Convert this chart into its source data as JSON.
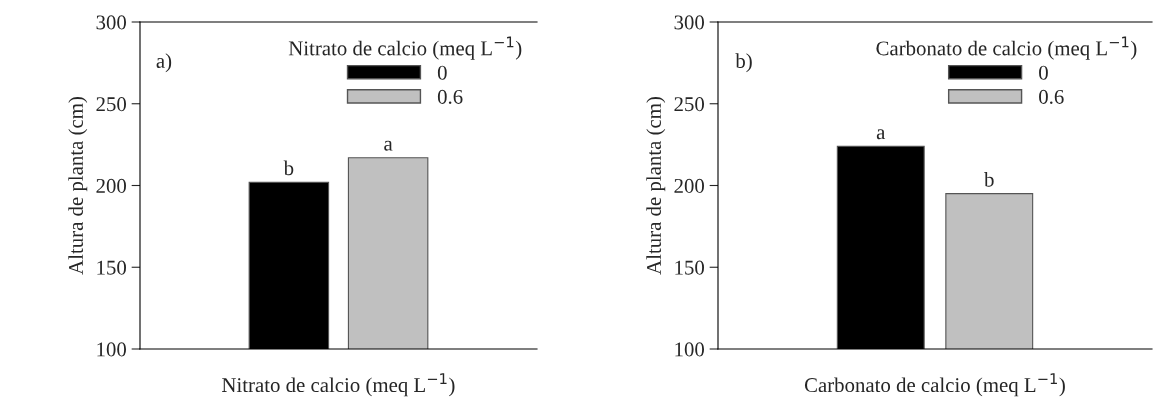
{
  "chart_data": [
    {
      "type": "bar",
      "xlabel": "Nitrato de calcio (meq L$^{−1}$)",
      "ylabel": "Altura de planta (cm)",
      "legend_title": "Nitrato de calcio (meq L$^{−1}$)",
      "annotations": [
        "a)"
      ],
      "categories": [
        null
      ],
      "series": [
        {
          "name": "0",
          "color": "#000000",
          "values": [
            202
          ],
          "value_labels": [
            "b"
          ]
        },
        {
          "name": "0.6",
          "color": "#c0c0c0",
          "values": [
            217
          ],
          "value_labels": [
            "a"
          ]
        }
      ],
      "ylim": [
        100,
        300
      ],
      "yticks": [
        100,
        150,
        200,
        250,
        300
      ],
      "grid": false,
      "legend": "top right"
    },
    {
      "type": "bar",
      "xlabel": "Carbonato de calcio (meq L$^{−1}$)",
      "ylabel": "Altura de planta (cm)",
      "legend_title": "Carbonato de calcio (meq L$^{−1}$)",
      "annotations": [
        "b)"
      ],
      "categories": [
        null
      ],
      "series": [
        {
          "name": "0",
          "color": "#000000",
          "values": [
            224
          ],
          "value_labels": [
            "a"
          ]
        },
        {
          "name": "0.6",
          "color": "#c0c0c0",
          "values": [
            195
          ],
          "value_labels": [
            "b"
          ]
        }
      ],
      "ylim": [
        100,
        300
      ],
      "yticks": [
        100,
        150,
        200,
        250,
        300
      ],
      "grid": false,
      "legend": "top right"
    }
  ]
}
